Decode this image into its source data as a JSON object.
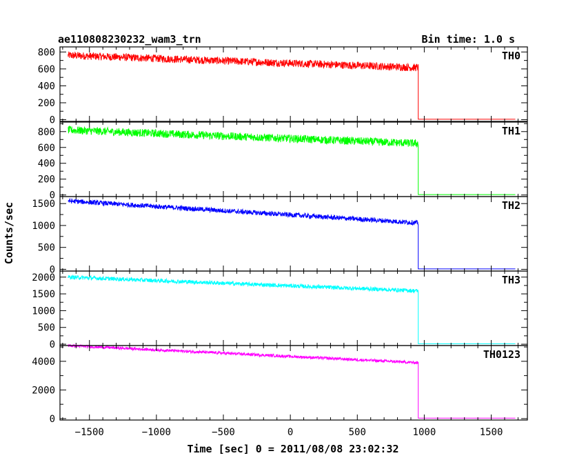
{
  "header": {
    "title": "ae110808230232_wam3_trn",
    "bin_time": "Bin time: 1.0 s"
  },
  "chart_data": {
    "type": "line",
    "xlabel": "Time [sec] 0 = 2011/08/08 23:02:32",
    "ylabel": "Counts/sec",
    "xlim": [
      -1720,
      1770
    ],
    "x_ticks": [
      -1500,
      -1000,
      -500,
      0,
      500,
      1000,
      1500
    ],
    "x_tick_labels": [
      "−1500",
      "−1000",
      "−500",
      "0",
      "500",
      "1000",
      "1500"
    ],
    "data_x_range": [
      -1660,
      1680
    ],
    "drop_time": 955,
    "panels": [
      {
        "name": "TH0",
        "color": "#ff0000",
        "ylim": [
          -20,
          860
        ],
        "yticks": [
          0,
          200,
          400,
          600,
          800
        ],
        "start": 760,
        "end": 615,
        "noise": 45,
        "after": 5
      },
      {
        "name": "TH1",
        "color": "#00ff00",
        "ylim": [
          -20,
          920
        ],
        "yticks": [
          0,
          200,
          400,
          600,
          800
        ],
        "start": 820,
        "end": 650,
        "noise": 50,
        "after": 5
      },
      {
        "name": "TH2",
        "color": "#0000ff",
        "ylim": [
          -40,
          1660
        ],
        "yticks": [
          0,
          500,
          1000,
          1500
        ],
        "start": 1560,
        "end": 1060,
        "noise": 55,
        "after": 10
      },
      {
        "name": "TH3",
        "color": "#00ffff",
        "ylim": [
          -40,
          2180
        ],
        "yticks": [
          0,
          500,
          1000,
          1500,
          2000
        ],
        "start": 2000,
        "end": 1590,
        "noise": 60,
        "after": 15
      },
      {
        "name": "TH0123",
        "color": "#ff00ff",
        "ylim": [
          -100,
          5100
        ],
        "yticks": [
          0,
          2000,
          4000
        ],
        "start": 5100,
        "end": 3900,
        "noise": 100,
        "after": 30
      }
    ]
  }
}
